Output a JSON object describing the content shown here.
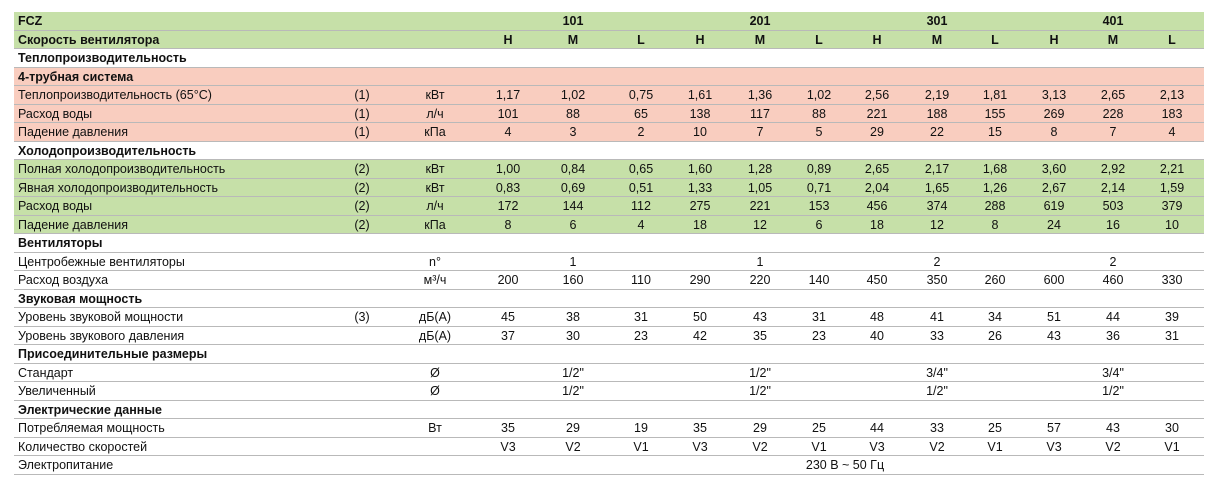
{
  "header": {
    "model_label": "FCZ",
    "models": [
      "101",
      "201",
      "301",
      "401"
    ],
    "speed_label": "Скорость вентилятора",
    "speeds": [
      "H",
      "M",
      "L",
      "H",
      "M",
      "L",
      "H",
      "M",
      "L",
      "H",
      "M",
      "L"
    ],
    "color": "#c6e0a8"
  },
  "rows": [
    {
      "heading": "Теплопроизводительность"
    },
    {
      "heading": "4-трубная система",
      "color": "#f9cdbf"
    },
    {
      "label": "Теплопроизводительность (65°C)",
      "note": "(1)",
      "unit": "кВт",
      "values": [
        "1,17",
        "1,02",
        "0,75",
        "1,61",
        "1,36",
        "1,02",
        "2,56",
        "2,19",
        "1,81",
        "3,13",
        "2,65",
        "2,13"
      ],
      "color": "#f9cdbf"
    },
    {
      "label": "Расход воды",
      "note": "(1)",
      "unit": "л/ч",
      "values": [
        "101",
        "88",
        "65",
        "138",
        "117",
        "88",
        "221",
        "188",
        "155",
        "269",
        "228",
        "183"
      ],
      "color": "#f9cdbf"
    },
    {
      "label": "Падение давления",
      "note": "(1)",
      "unit": "кПа",
      "values": [
        "4",
        "3",
        "2",
        "10",
        "7",
        "5",
        "29",
        "22",
        "15",
        "8",
        "7",
        "4"
      ],
      "color": "#f9cdbf"
    },
    {
      "heading": "Холодопроизводительность"
    },
    {
      "label": "Полная холодопроизводительность",
      "note": "(2)",
      "unit": "кВт",
      "values": [
        "1,00",
        "0,84",
        "0,65",
        "1,60",
        "1,28",
        "0,89",
        "2,65",
        "2,17",
        "1,68",
        "3,60",
        "2,92",
        "2,21"
      ],
      "color": "#c6e0a8"
    },
    {
      "label": "Явная холодопроизводительность",
      "note": "(2)",
      "unit": "кВт",
      "values": [
        "0,83",
        "0,69",
        "0,51",
        "1,33",
        "1,05",
        "0,71",
        "2,04",
        "1,65",
        "1,26",
        "2,67",
        "2,14",
        "1,59"
      ],
      "color": "#c6e0a8"
    },
    {
      "label": "Расход воды",
      "note": "(2)",
      "unit": "л/ч",
      "values": [
        "172",
        "144",
        "112",
        "275",
        "221",
        "153",
        "456",
        "374",
        "288",
        "619",
        "503",
        "379"
      ],
      "color": "#c6e0a8"
    },
    {
      "label": "Падение давления",
      "note": "(2)",
      "unit": "кПа",
      "values": [
        "8",
        "6",
        "4",
        "18",
        "12",
        "6",
        "18",
        "12",
        "8",
        "24",
        "16",
        "10"
      ],
      "color": "#c6e0a8"
    },
    {
      "heading": "Вентиляторы"
    },
    {
      "label": "Центробежные вентиляторы",
      "unit": "n°",
      "model_values": [
        "1",
        "1",
        "2",
        "2"
      ]
    },
    {
      "label": "Расход воздуха",
      "unit": "м³/ч",
      "values": [
        "200",
        "160",
        "110",
        "290",
        "220",
        "140",
        "450",
        "350",
        "260",
        "600",
        "460",
        "330"
      ]
    },
    {
      "heading": "Звуковая мощность"
    },
    {
      "label": "Уровень звуковой мощности",
      "note": "(3)",
      "unit": "дБ(А)",
      "values": [
        "45",
        "38",
        "31",
        "50",
        "43",
        "31",
        "48",
        "41",
        "34",
        "51",
        "44",
        "39"
      ]
    },
    {
      "label": "Уровень звукового давления",
      "unit": "дБ(А)",
      "values": [
        "37",
        "30",
        "23",
        "42",
        "35",
        "23",
        "40",
        "33",
        "26",
        "43",
        "36",
        "31"
      ]
    },
    {
      "heading": "Присоединительные размеры"
    },
    {
      "label": "Стандарт",
      "unit": "Ø",
      "model_values": [
        "1/2\"",
        "1/2\"",
        "3/4\"",
        "3/4\""
      ]
    },
    {
      "label": "Увеличенный",
      "unit": "Ø",
      "model_values": [
        "1/2\"",
        "1/2\"",
        "1/2\"",
        "1/2\""
      ]
    },
    {
      "heading": "Электрические данные"
    },
    {
      "label": "Потребляемая мощность",
      "unit": "Вт",
      "values": [
        "35",
        "29",
        "19",
        "35",
        "29",
        "25",
        "44",
        "33",
        "25",
        "57",
        "43",
        "30"
      ]
    },
    {
      "label": "Количество скоростей",
      "values": [
        "V3",
        "V2",
        "V1",
        "V3",
        "V2",
        "V1",
        "V3",
        "V2",
        "V1",
        "V3",
        "V2",
        "V1"
      ]
    },
    {
      "label": "Электропитание",
      "value": "230 В ~ 50 Гц"
    }
  ]
}
